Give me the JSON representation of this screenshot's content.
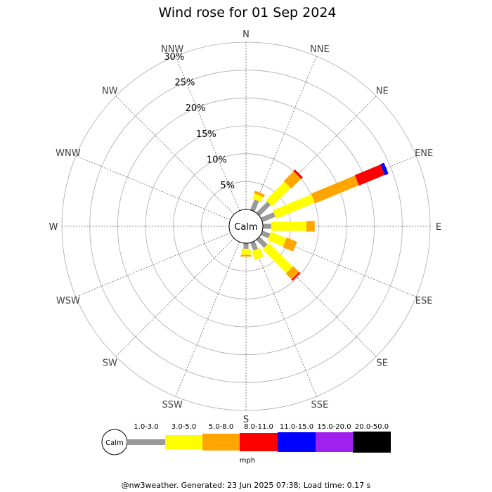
{
  "chart_data": {
    "type": "wind-rose",
    "title": "Wind rose for 01 Sep 2024",
    "radial_unit": "%",
    "rmax": 30,
    "radial_ticks": [
      "5%",
      "10%",
      "15%",
      "20%",
      "25%",
      "30%"
    ],
    "directions": [
      "N",
      "NNE",
      "NE",
      "ENE",
      "E",
      "ESE",
      "SE",
      "SSE",
      "S",
      "SSW",
      "SW",
      "WSW",
      "W",
      "WNW",
      "NW",
      "NNW"
    ],
    "calm_label": "Calm",
    "speed_bins": [
      {
        "label": "1.0-3.0",
        "color": "#999999"
      },
      {
        "label": "3.0-5.0",
        "color": "#ffff00"
      },
      {
        "label": "5.0-8.0",
        "color": "#ffa500"
      },
      {
        "label": "8.0-11.0",
        "color": "#ff0000"
      },
      {
        "label": "11.0-15.0",
        "color": "#0000ff"
      },
      {
        "label": "15.0-20.0",
        "color": "#a020f0"
      },
      {
        "label": "20.0-50.0",
        "color": "#000000"
      }
    ],
    "series_cumulative_pct": [
      {
        "direction": "NNE",
        "bins": [
          2.0,
          3.0,
          3.5
        ]
      },
      {
        "direction": "NE",
        "bins": [
          2.8,
          7.5,
          10.0,
          10.4
        ]
      },
      {
        "direction": "ENE",
        "bins": [
          2.5,
          10.0,
          18.5,
          23.5,
          24.2
        ]
      },
      {
        "direction": "E",
        "bins": [
          1.5,
          7.8,
          9.3
        ]
      },
      {
        "direction": "ESE",
        "bins": [
          1.5,
          4.5,
          6.5
        ]
      },
      {
        "direction": "SE",
        "bins": [
          2.0,
          8.0,
          9.5,
          9.8
        ]
      },
      {
        "direction": "SSE",
        "bins": [
          1.5,
          3.2
        ]
      },
      {
        "direction": "S",
        "bins": [
          1.0,
          2.1,
          2.4
        ]
      }
    ],
    "legend_unit": "mph"
  },
  "footer": "@nw3weather. Generated: 23 Jun 2025 07:38; Load time: 0.17 s"
}
